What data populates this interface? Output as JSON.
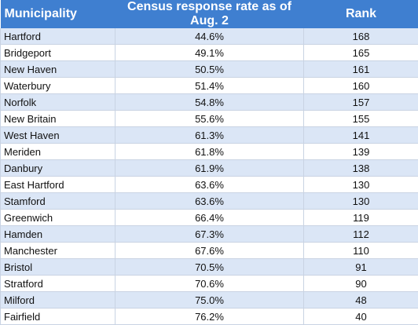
{
  "table": {
    "headers": [
      "Municipality",
      "Census response rate as of Aug. 2",
      "Rank"
    ],
    "rows": [
      [
        "Hartford",
        "44.6%",
        "168"
      ],
      [
        "Bridgeport",
        "49.1%",
        "165"
      ],
      [
        "New Haven",
        "50.5%",
        "161"
      ],
      [
        "Waterbury",
        "51.4%",
        "160"
      ],
      [
        "Norfolk",
        "54.8%",
        "157"
      ],
      [
        "New Britain",
        "55.6%",
        "155"
      ],
      [
        "West Haven",
        "61.3%",
        "141"
      ],
      [
        "Meriden",
        "61.8%",
        "139"
      ],
      [
        "Danbury",
        "61.9%",
        "138"
      ],
      [
        "East Hartford",
        "63.6%",
        "130"
      ],
      [
        "Stamford",
        "63.6%",
        "130"
      ],
      [
        "Greenwich",
        "66.4%",
        "119"
      ],
      [
        "Hamden",
        "67.3%",
        "112"
      ],
      [
        "Manchester",
        "67.6%",
        "110"
      ],
      [
        "Bristol",
        "70.5%",
        "91"
      ],
      [
        "Stratford",
        "70.6%",
        "90"
      ],
      [
        "Milford",
        "75.0%",
        "48"
      ],
      [
        "Fairfield",
        "76.2%",
        "40"
      ]
    ]
  },
  "colors": {
    "header_background": "#3f7fd0",
    "header_text": "#ffffff",
    "band_row": "#dbe6f6",
    "plain_row": "#ffffff"
  }
}
